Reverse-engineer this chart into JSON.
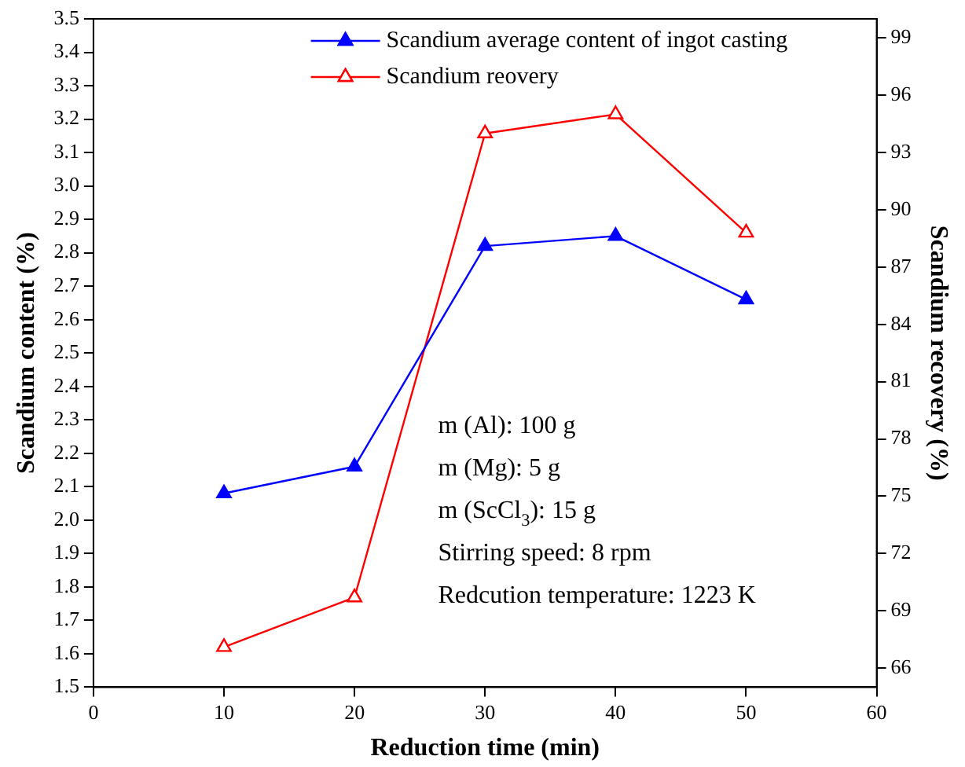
{
  "chart_data": {
    "type": "line",
    "xlabel": "Reduction time (min)",
    "ylabel": "Scandium content (%)",
    "y2label": "Scandium recovery (%)",
    "x": [
      10,
      20,
      30,
      40,
      50
    ],
    "series": [
      {
        "name": "Scandium average content of ingot casting",
        "color": "#0000ff",
        "values": [
          2.08,
          2.16,
          2.82,
          2.85,
          2.66
        ],
        "marker": "triangle"
      },
      {
        "name": "Scandium reovery",
        "color": "#ff0000",
        "values": [
          67.1,
          69.7,
          94.0,
          95.0,
          88.8
        ],
        "axis": "y2",
        "marker": "triangle"
      }
    ],
    "xlim": [
      0,
      60
    ],
    "xticks": [
      0,
      10,
      20,
      30,
      40,
      50,
      60
    ],
    "ylim": [
      1.5,
      3.5
    ],
    "yticks": [
      1.5,
      1.6,
      1.7,
      1.8,
      1.9,
      {
        "value": 2,
        "label": "2.0"
      },
      2.1,
      2.2,
      2.3,
      2.4,
      2.5,
      2.6,
      2.7,
      2.8,
      2.9,
      {
        "value": 3,
        "label": "3.0"
      },
      3.1,
      3.2,
      3.3,
      3.4,
      3.5
    ],
    "y2lim": [
      65,
      100
    ],
    "y2ticks": [
      66,
      69,
      72,
      75,
      78,
      81,
      84,
      87,
      90,
      93,
      96,
      99
    ],
    "legend": "top right",
    "grid": false,
    "line_style": "solid",
    "annotations": [
      "m (Al): 100 g",
      "m (Mg): 5 g",
      "m (ScCl$_{3}$): 15 g",
      "Stirring speed: 8 rpm",
      "Redcution temperature: 1223 K"
    ]
  }
}
